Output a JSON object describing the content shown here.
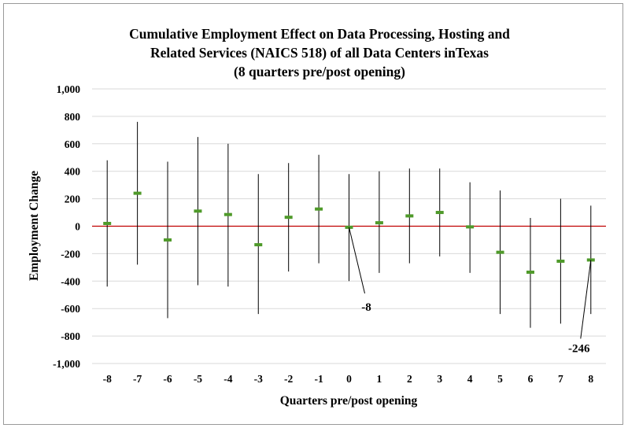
{
  "chart_data": {
    "type": "errorbar",
    "title": [
      "Cumulative Employment Effect on Data Processing, Hosting and",
      "Related Services (NAICS 518) of all Data Centers inTexas",
      "(8 quarters pre/post opening)"
    ],
    "xlabel": "Quarters pre/post opening",
    "ylabel": "Employment Change",
    "ylim": [
      -1000,
      1000
    ],
    "y_ticks": [
      1000,
      800,
      600,
      400,
      200,
      0,
      -200,
      -400,
      -600,
      -800,
      -1000
    ],
    "y_tick_labels": [
      "1,000",
      "800",
      "600",
      "400",
      "200",
      "0",
      "-200",
      "-400",
      "-600",
      "-800",
      "-1,000"
    ],
    "categories": [
      "-8",
      "-7",
      "-6",
      "-5",
      "-4",
      "-3",
      "-2",
      "-1",
      "0",
      "1",
      "2",
      "3",
      "4",
      "5",
      "6",
      "7",
      "8"
    ],
    "estimates": [
      20,
      240,
      -100,
      110,
      85,
      -135,
      65,
      125,
      -8,
      25,
      75,
      100,
      -5,
      -190,
      -335,
      -255,
      -246
    ],
    "lower": [
      -440,
      -280,
      -670,
      -430,
      -440,
      -640,
      -330,
      -270,
      -400,
      -340,
      -270,
      -220,
      -340,
      -640,
      -740,
      -710,
      -640
    ],
    "upper": [
      480,
      760,
      470,
      650,
      600,
      380,
      460,
      520,
      380,
      400,
      420,
      420,
      320,
      260,
      60,
      200,
      150
    ],
    "reference_line": 0,
    "annotations": [
      {
        "label": "-8",
        "category": "0",
        "value": -8
      },
      {
        "label": "-246",
        "category": "8",
        "value": -246
      }
    ],
    "grid": true,
    "colors": {
      "marker": "#4f9a2a",
      "whisker": "#000000",
      "zero_line": "#c00000",
      "grid": "#d9d9d9"
    }
  }
}
